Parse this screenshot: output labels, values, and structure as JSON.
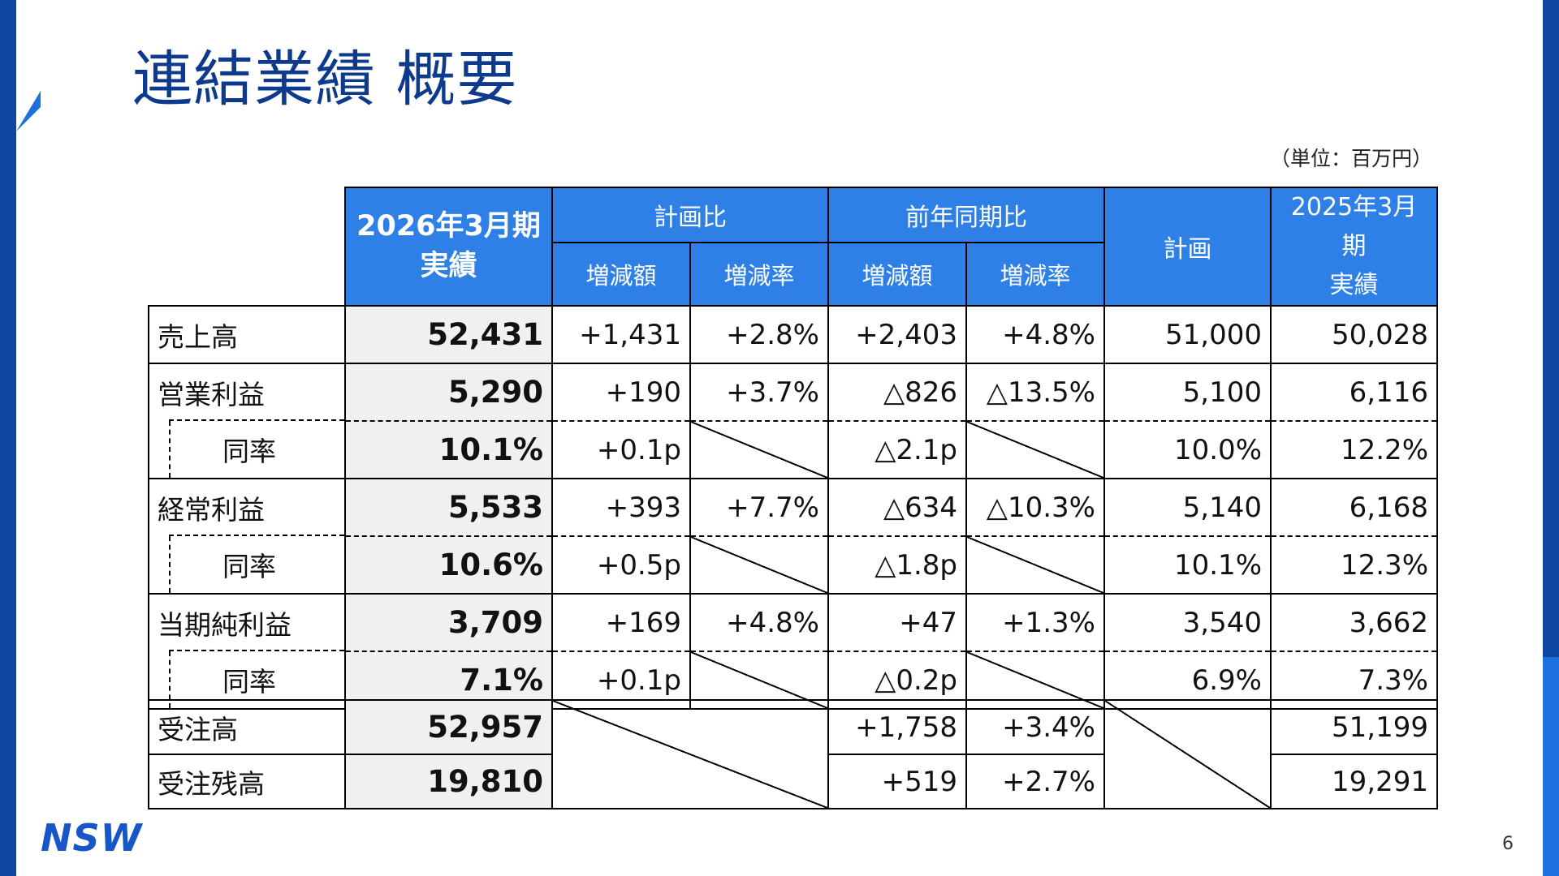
{
  "title": "連結業績 概要",
  "unit_note": "（単位：百万円）",
  "header": {
    "actual_label": "2026年3月期\n実績",
    "plan_compare": "計画比",
    "yoy_compare": "前年同期比",
    "diff_amount": "増減額",
    "diff_rate": "増減率",
    "plan": "計画",
    "prev_actual": "2025年3月期\n実績"
  },
  "rows": [
    {
      "label": "売上高",
      "actual": "52,431",
      "plan_diff": "+1,431",
      "plan_rate": "+2.8%",
      "yoy_diff": "+2,403",
      "yoy_rate": "+4.8%",
      "plan": "51,000",
      "prev": "50,028"
    },
    {
      "label": "営業利益",
      "actual": "5,290",
      "plan_diff": "+190",
      "plan_rate": "+3.7%",
      "yoy_diff": "△826",
      "yoy_rate": "△13.5%",
      "plan": "5,100",
      "prev": "6,116"
    },
    {
      "label": "同率",
      "actual": "10.1%",
      "plan_diff": "+0.1p",
      "yoy_diff": "△2.1p",
      "plan": "10.0%",
      "prev": "12.2%"
    },
    {
      "label": "経常利益",
      "actual": "5,533",
      "plan_diff": "+393",
      "plan_rate": "+7.7%",
      "yoy_diff": "△634",
      "yoy_rate": "△10.3%",
      "plan": "5,140",
      "prev": "6,168"
    },
    {
      "label": "同率",
      "actual": "10.6%",
      "plan_diff": "+0.5p",
      "yoy_diff": "△1.8p",
      "plan": "10.1%",
      "prev": "12.3%"
    },
    {
      "label": "当期純利益",
      "actual": "3,709",
      "plan_diff": "+169",
      "plan_rate": "+4.8%",
      "yoy_diff": "+47",
      "yoy_rate": "+1.3%",
      "plan": "3,540",
      "prev": "3,662"
    },
    {
      "label": "同率",
      "actual": "7.1%",
      "plan_diff": "+0.1p",
      "yoy_diff": "△0.2p",
      "plan": "6.9%",
      "prev": "7.3%"
    }
  ],
  "orders": [
    {
      "label": "受注高",
      "actual": "52,957",
      "yoy_diff": "+1,758",
      "yoy_rate": "+3.4%",
      "prev": "51,199"
    },
    {
      "label": "受注残高",
      "actual": "19,810",
      "yoy_diff": "+519",
      "yoy_rate": "+2.7%",
      "prev": "19,291"
    }
  ],
  "logo": "NSW",
  "page_number": "6",
  "colors": {
    "header_blue": "#2f80e6",
    "title_blue": "#0d3a8c",
    "brand_navy": "#0d47a1",
    "actual_bg": "#f0f0f0"
  }
}
